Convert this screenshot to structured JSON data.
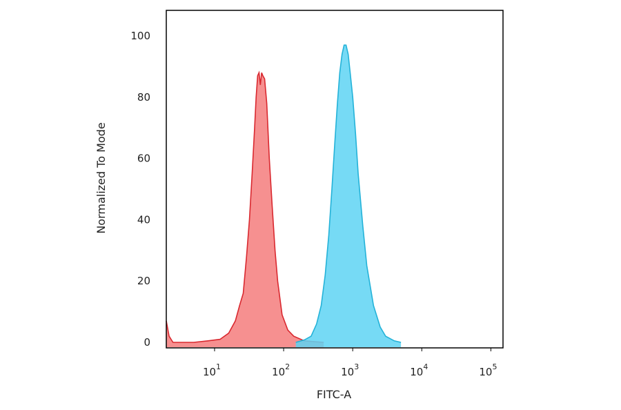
{
  "chart_data": {
    "type": "area",
    "xlabel": "FITC-A",
    "ylabel": "Normalized To Mode",
    "x_scale": "log",
    "xlim": [
      2,
      150000
    ],
    "ylim": [
      0,
      100
    ],
    "x_ticks": [
      {
        "base": "10",
        "exp": "1",
        "value": 10
      },
      {
        "base": "10",
        "exp": "2",
        "value": 100
      },
      {
        "base": "10",
        "exp": "3",
        "value": 1000
      },
      {
        "base": "10",
        "exp": "4",
        "value": 10000
      },
      {
        "base": "10",
        "exp": "5",
        "value": 100000
      }
    ],
    "y_ticks": [
      "0",
      "20",
      "40",
      "60",
      "80",
      "100"
    ],
    "grid": false,
    "series": [
      {
        "color": "#d9282f",
        "fill": "#f47c7c",
        "points": [
          [
            2,
            7
          ],
          [
            2.2,
            2
          ],
          [
            2.5,
            0
          ],
          [
            5,
            0
          ],
          [
            8,
            0.5
          ],
          [
            12,
            1
          ],
          [
            16,
            3
          ],
          [
            20,
            7
          ],
          [
            23,
            12
          ],
          [
            26,
            16
          ],
          [
            29,
            28
          ],
          [
            32,
            40
          ],
          [
            35,
            55
          ],
          [
            38,
            70
          ],
          [
            40,
            80
          ],
          [
            42,
            87
          ],
          [
            44,
            88
          ],
          [
            46,
            84
          ],
          [
            48,
            88
          ],
          [
            50,
            87
          ],
          [
            53,
            86
          ],
          [
            57,
            78
          ],
          [
            62,
            60
          ],
          [
            68,
            45
          ],
          [
            75,
            30
          ],
          [
            82,
            20
          ],
          [
            95,
            9
          ],
          [
            115,
            4
          ],
          [
            140,
            2
          ],
          [
            200,
            0.5
          ],
          [
            380,
            0
          ]
        ]
      },
      {
        "color": "#23b2d8",
        "fill": "#5ed3f3",
        "points": [
          [
            150,
            0
          ],
          [
            200,
            0.8
          ],
          [
            250,
            2
          ],
          [
            300,
            6
          ],
          [
            350,
            12
          ],
          [
            400,
            22
          ],
          [
            450,
            35
          ],
          [
            500,
            50
          ],
          [
            550,
            65
          ],
          [
            600,
            78
          ],
          [
            650,
            88
          ],
          [
            700,
            94
          ],
          [
            750,
            97
          ],
          [
            800,
            97
          ],
          [
            860,
            94
          ],
          [
            920,
            88
          ],
          [
            1000,
            80
          ],
          [
            1100,
            68
          ],
          [
            1200,
            55
          ],
          [
            1400,
            38
          ],
          [
            1600,
            25
          ],
          [
            2000,
            12
          ],
          [
            2500,
            5
          ],
          [
            3000,
            2
          ],
          [
            4000,
            0.5
          ],
          [
            5000,
            0
          ]
        ]
      }
    ]
  }
}
